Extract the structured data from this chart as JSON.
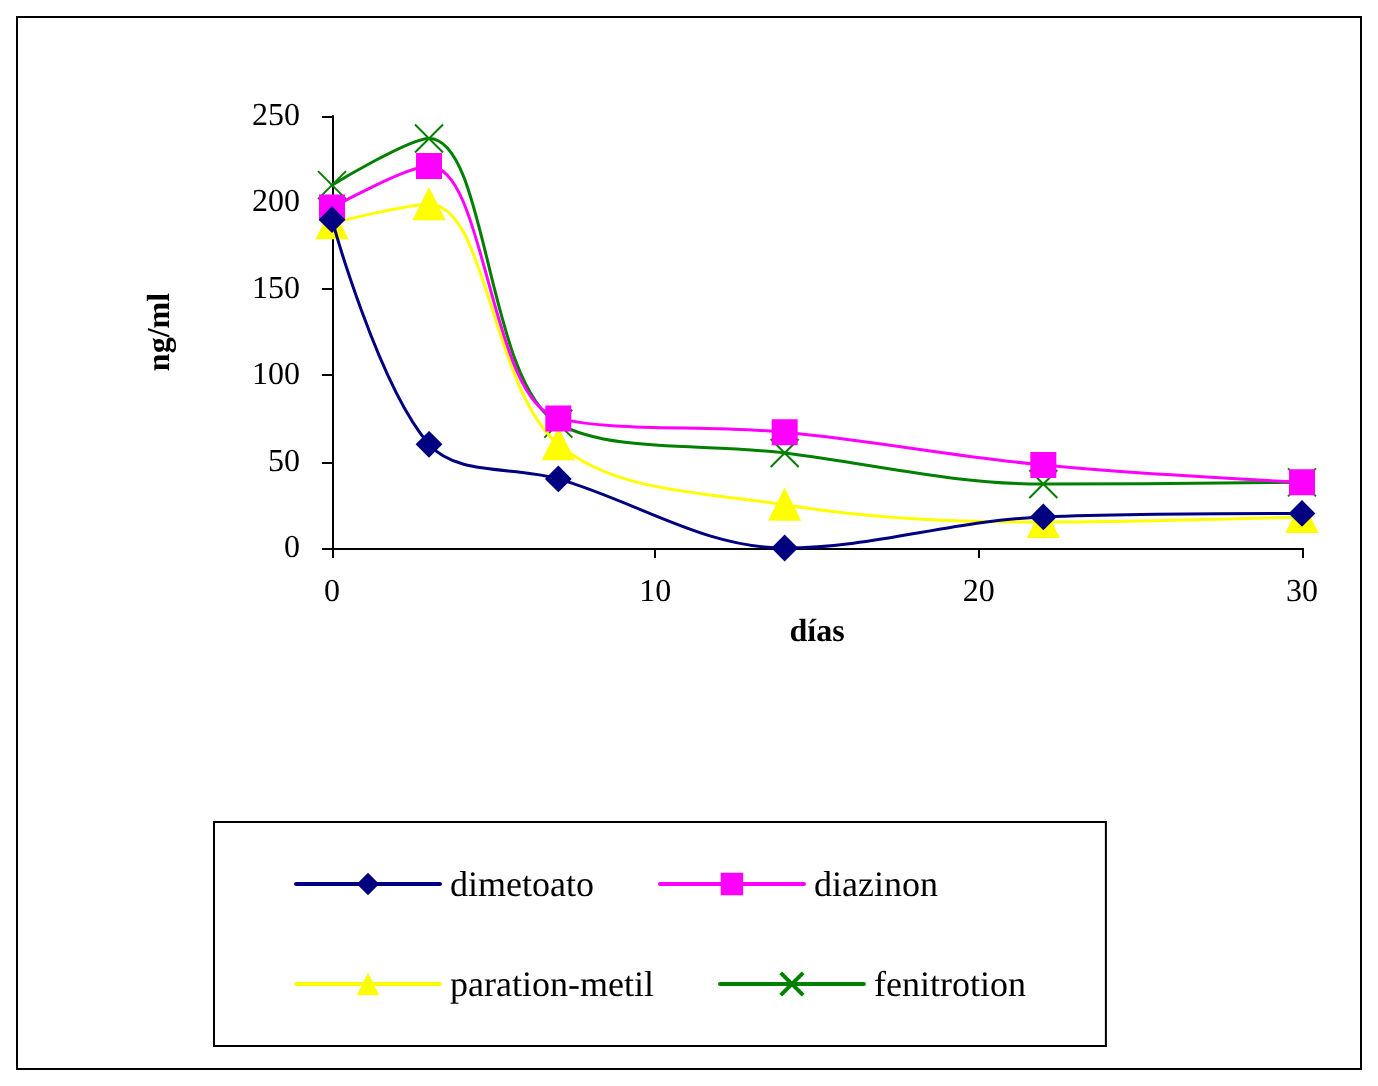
{
  "chart_data": {
    "type": "line",
    "xlabel": "días",
    "ylabel": "ng/ml",
    "x": [
      0,
      3,
      7,
      14,
      22,
      30
    ],
    "xlim": [
      0,
      30
    ],
    "xticks": [
      0,
      10,
      20,
      30
    ],
    "ylim": [
      0,
      250
    ],
    "yticks": [
      0,
      50,
      100,
      150,
      200,
      250
    ],
    "grid": false,
    "legend": "bottom",
    "line_style": "solid",
    "series": [
      {
        "name": "dimetoato",
        "color": "#000080",
        "marker": "diamond",
        "values": [
          190,
          60,
          40,
          0,
          18,
          20
        ]
      },
      {
        "name": "diazinon",
        "color": "#ff00ff",
        "marker": "square",
        "values": [
          197,
          221,
          75,
          67,
          48,
          38
        ]
      },
      {
        "name": "paration-metil",
        "color": "#ffff00",
        "marker": "triangle",
        "values": [
          188,
          199,
          60,
          25,
          15,
          18
        ]
      },
      {
        "name": "fenitrotion",
        "color": "#008000",
        "marker": "cross",
        "values": [
          210,
          237,
          72,
          55,
          37,
          38
        ]
      }
    ]
  }
}
